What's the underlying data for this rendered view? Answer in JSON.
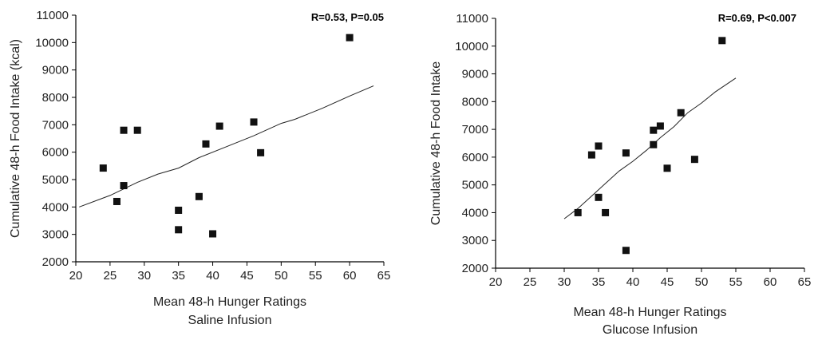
{
  "chart_data": [
    {
      "type": "scatter",
      "title": "",
      "annotation": "R=0.53, P=0.05",
      "xlabel": "Mean 48-h Hunger Ratings",
      "xlabel2": "Saline Infusion",
      "ylabel": "Cumulative 48-h Food Intake (kcal)",
      "xlim": [
        20,
        65
      ],
      "ylim": [
        2000,
        11000
      ],
      "xticks": [
        "20",
        "25",
        "30",
        "35",
        "40",
        "45",
        "50",
        "55",
        "60",
        "65"
      ],
      "yticks": [
        "2000",
        "3000",
        "4000",
        "5000",
        "6000",
        "7000",
        "8000",
        "9000",
        "10000",
        "11000"
      ],
      "points": [
        {
          "x": 24,
          "y": 5420
        },
        {
          "x": 26,
          "y": 4200
        },
        {
          "x": 27,
          "y": 6800
        },
        {
          "x": 27,
          "y": 4780
        },
        {
          "x": 29,
          "y": 6800
        },
        {
          "x": 35,
          "y": 3880
        },
        {
          "x": 35,
          "y": 3170
        },
        {
          "x": 38,
          "y": 4380
        },
        {
          "x": 39,
          "y": 6300
        },
        {
          "x": 40,
          "y": 3020
        },
        {
          "x": 41,
          "y": 6950
        },
        {
          "x": 46,
          "y": 7100
        },
        {
          "x": 47,
          "y": 5980
        },
        {
          "x": 60,
          "y": 10180
        }
      ],
      "trend": [
        {
          "x": 20.5,
          "y": 4000
        },
        {
          "x": 25,
          "y": 4420
        },
        {
          "x": 29,
          "y": 4900
        },
        {
          "x": 32,
          "y": 5200
        },
        {
          "x": 35,
          "y": 5420
        },
        {
          "x": 38,
          "y": 5800
        },
        {
          "x": 42,
          "y": 6200
        },
        {
          "x": 46,
          "y": 6600
        },
        {
          "x": 50,
          "y": 7050
        },
        {
          "x": 52,
          "y": 7200
        },
        {
          "x": 56,
          "y": 7600
        },
        {
          "x": 60,
          "y": 8050
        },
        {
          "x": 63.5,
          "y": 8420
        }
      ]
    },
    {
      "type": "scatter",
      "title": "",
      "annotation": "R=0.69, P<0.007",
      "xlabel": "Mean 48-h Hunger Ratings",
      "xlabel2": "Glucose Infusion",
      "ylabel": "Cumulative 48-h Food Intake",
      "xlim": [
        20,
        65
      ],
      "ylim": [
        2000,
        11000
      ],
      "xticks": [
        "20",
        "25",
        "30",
        "35",
        "40",
        "45",
        "50",
        "55",
        "60",
        "65"
      ],
      "yticks": [
        "2000",
        "3000",
        "4000",
        "5000",
        "6000",
        "7000",
        "8000",
        "9000",
        "10000",
        "11000"
      ],
      "points": [
        {
          "x": 32,
          "y": 4000
        },
        {
          "x": 34,
          "y": 6080
        },
        {
          "x": 35,
          "y": 6400
        },
        {
          "x": 35,
          "y": 4550
        },
        {
          "x": 36,
          "y": 4000
        },
        {
          "x": 39,
          "y": 6150
        },
        {
          "x": 39,
          "y": 2640
        },
        {
          "x": 43,
          "y": 6970
        },
        {
          "x": 43,
          "y": 6450
        },
        {
          "x": 44,
          "y": 7120
        },
        {
          "x": 45,
          "y": 5600
        },
        {
          "x": 47,
          "y": 7600
        },
        {
          "x": 49,
          "y": 5920
        },
        {
          "x": 53,
          "y": 10200
        }
      ],
      "trend": [
        {
          "x": 30,
          "y": 3780
        },
        {
          "x": 32,
          "y": 4150
        },
        {
          "x": 34,
          "y": 4600
        },
        {
          "x": 36,
          "y": 5050
        },
        {
          "x": 38,
          "y": 5500
        },
        {
          "x": 40,
          "y": 5850
        },
        {
          "x": 42,
          "y": 6250
        },
        {
          "x": 44,
          "y": 6700
        },
        {
          "x": 46,
          "y": 7100
        },
        {
          "x": 48,
          "y": 7600
        },
        {
          "x": 50,
          "y": 7950
        },
        {
          "x": 52,
          "y": 8350
        },
        {
          "x": 55,
          "y": 8850
        }
      ]
    }
  ]
}
